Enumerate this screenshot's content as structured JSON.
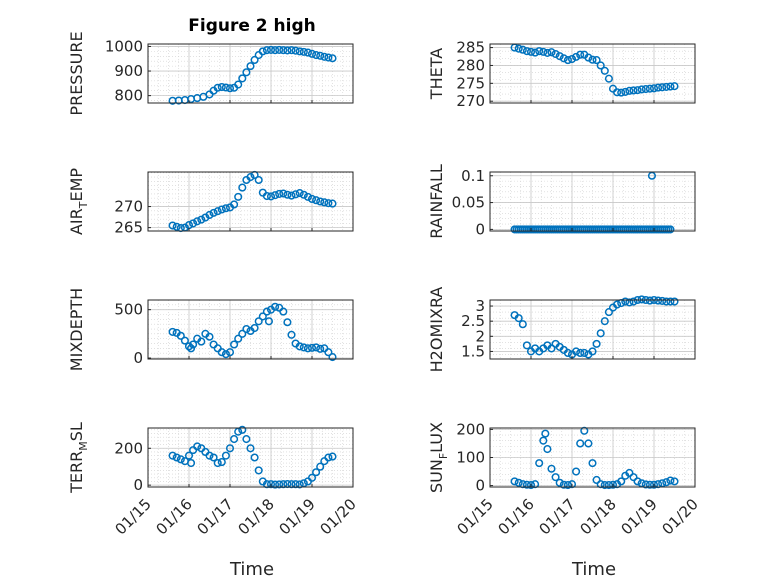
{
  "figure": {
    "title": "Figure 2 high",
    "xlabel": "Time",
    "xticks": [
      "01/15",
      "01/16",
      "01/17",
      "01/18",
      "01/19",
      "01/20"
    ],
    "xlim": [
      15,
      20
    ],
    "marker_color": "#0072BD"
  },
  "chart_data": [
    {
      "type": "scatter",
      "name": "pressure",
      "ylabel": "PRESSURE",
      "ylim": [
        770,
        1010
      ],
      "yticks": [
        800,
        900,
        1000
      ],
      "x": [
        15.6,
        15.75,
        15.9,
        16.05,
        16.2,
        16.35,
        16.5,
        16.6,
        16.7,
        16.8,
        16.9,
        17.0,
        17.1,
        17.2,
        17.3,
        17.4,
        17.5,
        17.6,
        17.7,
        17.8,
        17.9,
        18.0,
        18.1,
        18.2,
        18.3,
        18.4,
        18.5,
        18.6,
        18.7,
        18.8,
        18.9,
        19.0,
        19.1,
        19.2,
        19.3,
        19.4,
        19.5
      ],
      "values": [
        779,
        780,
        782,
        786,
        790,
        795,
        805,
        820,
        832,
        835,
        833,
        830,
        832,
        845,
        870,
        895,
        920,
        945,
        965,
        980,
        985,
        986,
        985,
        986,
        985,
        984,
        985,
        983,
        980,
        978,
        975,
        970,
        965,
        962,
        958,
        955,
        952
      ]
    },
    {
      "type": "scatter",
      "name": "theta",
      "ylabel": "THETA",
      "ylim": [
        269.5,
        286
      ],
      "yticks": [
        270,
        275,
        280,
        285
      ],
      "x": [
        15.6,
        15.7,
        15.8,
        15.9,
        16.0,
        16.1,
        16.2,
        16.3,
        16.4,
        16.5,
        16.6,
        16.7,
        16.8,
        16.9,
        17.0,
        17.1,
        17.2,
        17.3,
        17.4,
        17.5,
        17.6,
        17.7,
        17.8,
        17.9,
        18.0,
        18.1,
        18.2,
        18.3,
        18.4,
        18.5,
        18.6,
        18.7,
        18.8,
        18.9,
        19.0,
        19.1,
        19.2,
        19.3,
        19.4,
        19.5
      ],
      "values": [
        285,
        284.7,
        284.4,
        284,
        283.8,
        283.6,
        284,
        283.8,
        283.5,
        283.7,
        283.2,
        282.6,
        282,
        281.5,
        281.8,
        282.4,
        283,
        283,
        282.2,
        281.6,
        281.5,
        280,
        278.5,
        276.3,
        273.5,
        272.5,
        272.4,
        272.6,
        272.9,
        273,
        273.1,
        273.3,
        273.4,
        273.5,
        273.6,
        273.8,
        273.9,
        274,
        274.1,
        274.2
      ]
    },
    {
      "type": "scatter",
      "name": "air_temp",
      "ylabel": "AIR_TEMP",
      "ylim": [
        264.2,
        278.2
      ],
      "yticks": [
        265,
        270
      ],
      "x": [
        15.6,
        15.7,
        15.8,
        15.9,
        16.0,
        16.1,
        16.2,
        16.3,
        16.4,
        16.5,
        16.6,
        16.7,
        16.8,
        16.9,
        17.0,
        17.1,
        17.2,
        17.3,
        17.4,
        17.5,
        17.6,
        17.7,
        17.8,
        17.9,
        18.0,
        18.1,
        18.2,
        18.3,
        18.4,
        18.5,
        18.6,
        18.7,
        18.8,
        18.9,
        19.0,
        19.1,
        19.2,
        19.3,
        19.4,
        19.5
      ],
      "values": [
        265.5,
        265.2,
        264.9,
        265,
        265.6,
        266,
        266.5,
        266.9,
        267.4,
        268,
        268.5,
        268.9,
        269.3,
        269.6,
        269.8,
        270.5,
        272.3,
        274.5,
        276.3,
        277,
        277.5,
        276.3,
        273.3,
        272.5,
        272.4,
        272.7,
        273,
        273.1,
        272.8,
        272.6,
        272.9,
        273.2,
        272.8,
        272.3,
        271.8,
        271.5,
        271.2,
        271,
        270.8,
        270.7
      ]
    },
    {
      "type": "scatter",
      "name": "rainfall",
      "ylabel": "RAINFALL",
      "ylim": [
        -0.003,
        0.107
      ],
      "yticks": [
        0,
        0.05,
        0.1
      ],
      "ytick_labels": [
        "0",
        "0.05",
        "0.1"
      ],
      "baseline": {
        "from": 15.6,
        "to": 19.4,
        "step": 0.05,
        "value": 0
      },
      "x": [
        18.95
      ],
      "values": [
        0.1
      ]
    },
    {
      "type": "scatter",
      "name": "mixdepth",
      "ylabel": "MIXDEPTH",
      "ylim": [
        -10,
        600
      ],
      "yticks": [
        0,
        500
      ],
      "x": [
        15.6,
        15.7,
        15.8,
        15.9,
        16.0,
        16.05,
        16.1,
        16.2,
        16.3,
        16.4,
        16.5,
        16.6,
        16.7,
        16.8,
        16.9,
        17.0,
        17.1,
        17.2,
        17.3,
        17.4,
        17.5,
        17.6,
        17.7,
        17.8,
        17.9,
        17.95,
        18.0,
        18.1,
        18.2,
        18.3,
        18.4,
        18.5,
        18.6,
        18.7,
        18.8,
        18.9,
        19.0,
        19.1,
        19.2,
        19.3,
        19.4,
        19.5
      ],
      "values": [
        270,
        260,
        230,
        180,
        120,
        100,
        140,
        200,
        170,
        250,
        220,
        140,
        100,
        60,
        40,
        60,
        140,
        200,
        250,
        300,
        280,
        310,
        380,
        430,
        480,
        380,
        500,
        530,
        520,
        480,
        370,
        240,
        150,
        120,
        110,
        100,
        105,
        110,
        95,
        100,
        60,
        10
      ]
    },
    {
      "type": "scatter",
      "name": "h2omixra",
      "ylabel": "H2OMIXRA",
      "ylim": [
        1.25,
        3.2
      ],
      "yticks": [
        1.5,
        2,
        2.5,
        3
      ],
      "x": [
        15.6,
        15.7,
        15.8,
        15.9,
        16.0,
        16.1,
        16.2,
        16.3,
        16.4,
        16.5,
        16.6,
        16.7,
        16.8,
        16.9,
        17.0,
        17.1,
        17.2,
        17.3,
        17.4,
        17.5,
        17.6,
        17.7,
        17.8,
        17.9,
        18.0,
        18.1,
        18.2,
        18.3,
        18.4,
        18.5,
        18.6,
        18.7,
        18.8,
        18.9,
        19.0,
        19.1,
        19.2,
        19.3,
        19.4,
        19.5
      ],
      "values": [
        2.7,
        2.6,
        2.4,
        1.7,
        1.5,
        1.6,
        1.5,
        1.6,
        1.7,
        1.6,
        1.75,
        1.65,
        1.55,
        1.45,
        1.4,
        1.5,
        1.45,
        1.45,
        1.4,
        1.5,
        1.75,
        2.1,
        2.5,
        2.8,
        2.95,
        3.05,
        3.1,
        3.15,
        3.12,
        3.15,
        3.2,
        3.22,
        3.2,
        3.18,
        3.2,
        3.18,
        3.17,
        3.15,
        3.15,
        3.15
      ]
    },
    {
      "type": "scatter",
      "name": "terr_msl",
      "ylabel": "TERR_MSL",
      "ylim": [
        -10,
        310
      ],
      "yticks": [
        0,
        200
      ],
      "x": [
        15.6,
        15.7,
        15.8,
        15.9,
        16.0,
        16.05,
        16.1,
        16.2,
        16.3,
        16.4,
        16.5,
        16.6,
        16.7,
        16.8,
        16.9,
        17.0,
        17.1,
        17.2,
        17.3,
        17.4,
        17.5,
        17.6,
        17.7,
        17.8,
        17.9,
        18.0,
        18.1,
        18.2,
        18.3,
        18.4,
        18.5,
        18.6,
        18.7,
        18.8,
        18.9,
        19.0,
        19.1,
        19.2,
        19.3,
        19.4,
        19.5
      ],
      "values": [
        160,
        150,
        140,
        130,
        160,
        120,
        190,
        210,
        200,
        180,
        160,
        150,
        120,
        125,
        160,
        200,
        250,
        290,
        300,
        250,
        200,
        150,
        80,
        20,
        5,
        5,
        3,
        4,
        5,
        6,
        5,
        5,
        4,
        10,
        20,
        40,
        70,
        100,
        130,
        150,
        155
      ]
    },
    {
      "type": "scatter",
      "name": "sun_flux",
      "ylabel": "SUN_FLUX",
      "ylim": [
        -5,
        205
      ],
      "yticks": [
        0,
        100,
        200
      ],
      "x": [
        15.6,
        15.7,
        15.8,
        15.9,
        16.0,
        16.1,
        16.2,
        16.3,
        16.35,
        16.4,
        16.5,
        16.6,
        16.7,
        16.8,
        16.9,
        17.0,
        17.1,
        17.2,
        17.3,
        17.4,
        17.5,
        17.6,
        17.7,
        17.8,
        17.9,
        18.0,
        18.1,
        18.2,
        18.3,
        18.4,
        18.5,
        18.6,
        18.7,
        18.8,
        18.9,
        19.0,
        19.1,
        19.2,
        19.3,
        19.4,
        19.5
      ],
      "values": [
        15,
        10,
        5,
        3,
        2,
        5,
        80,
        160,
        185,
        130,
        60,
        30,
        10,
        3,
        2,
        5,
        50,
        150,
        195,
        150,
        80,
        20,
        5,
        2,
        2,
        3,
        5,
        15,
        35,
        45,
        30,
        15,
        8,
        4,
        3,
        3,
        5,
        8,
        12,
        18,
        15
      ]
    }
  ]
}
